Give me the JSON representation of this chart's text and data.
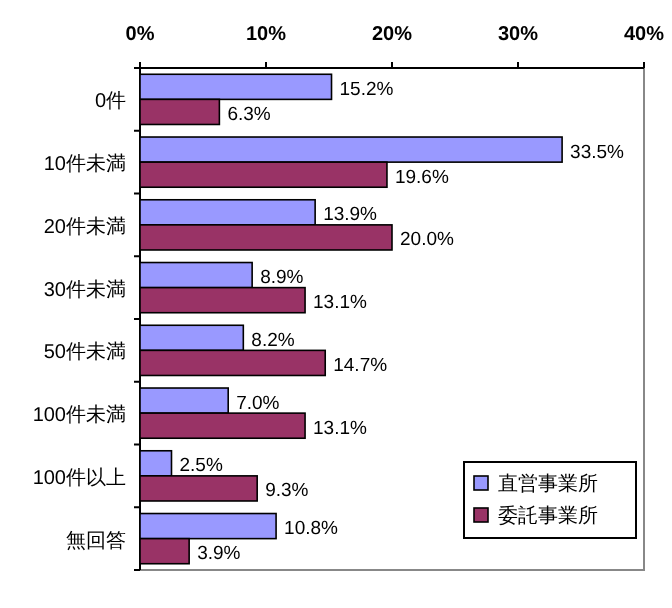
{
  "chart_data": {
    "type": "bar",
    "orientation": "horizontal",
    "categories": [
      "0件",
      "10件未満",
      "20件未満",
      "30件未満",
      "50件未満",
      "100件未満",
      "100件以上",
      "無回答"
    ],
    "series": [
      {
        "name": "直営事業所",
        "color": "#9999ff",
        "values": [
          15.2,
          33.5,
          13.9,
          8.9,
          8.2,
          7.0,
          2.5,
          10.8
        ],
        "value_labels": [
          "15.2%",
          "33.5%",
          "13.9%",
          "8.9%",
          "8.2%",
          "7.0%",
          "2.5%",
          "10.8%"
        ]
      },
      {
        "name": "委託事業所",
        "color": "#993366",
        "values": [
          6.3,
          19.6,
          20.0,
          13.1,
          14.7,
          13.1,
          9.3,
          3.9
        ],
        "value_labels": [
          "6.3%",
          "19.6%",
          "20.0%",
          "13.1%",
          "14.7%",
          "13.1%",
          "9.3%",
          "3.9%"
        ]
      }
    ],
    "xlim": [
      0,
      40
    ],
    "xticks": [
      {
        "value": 0,
        "label": "0%"
      },
      {
        "value": 10,
        "label": "10%"
      },
      {
        "value": 20,
        "label": "20%"
      },
      {
        "value": 30,
        "label": "30%"
      },
      {
        "value": 40,
        "label": "40%"
      }
    ],
    "legend": "bottom right",
    "grid": false
  }
}
